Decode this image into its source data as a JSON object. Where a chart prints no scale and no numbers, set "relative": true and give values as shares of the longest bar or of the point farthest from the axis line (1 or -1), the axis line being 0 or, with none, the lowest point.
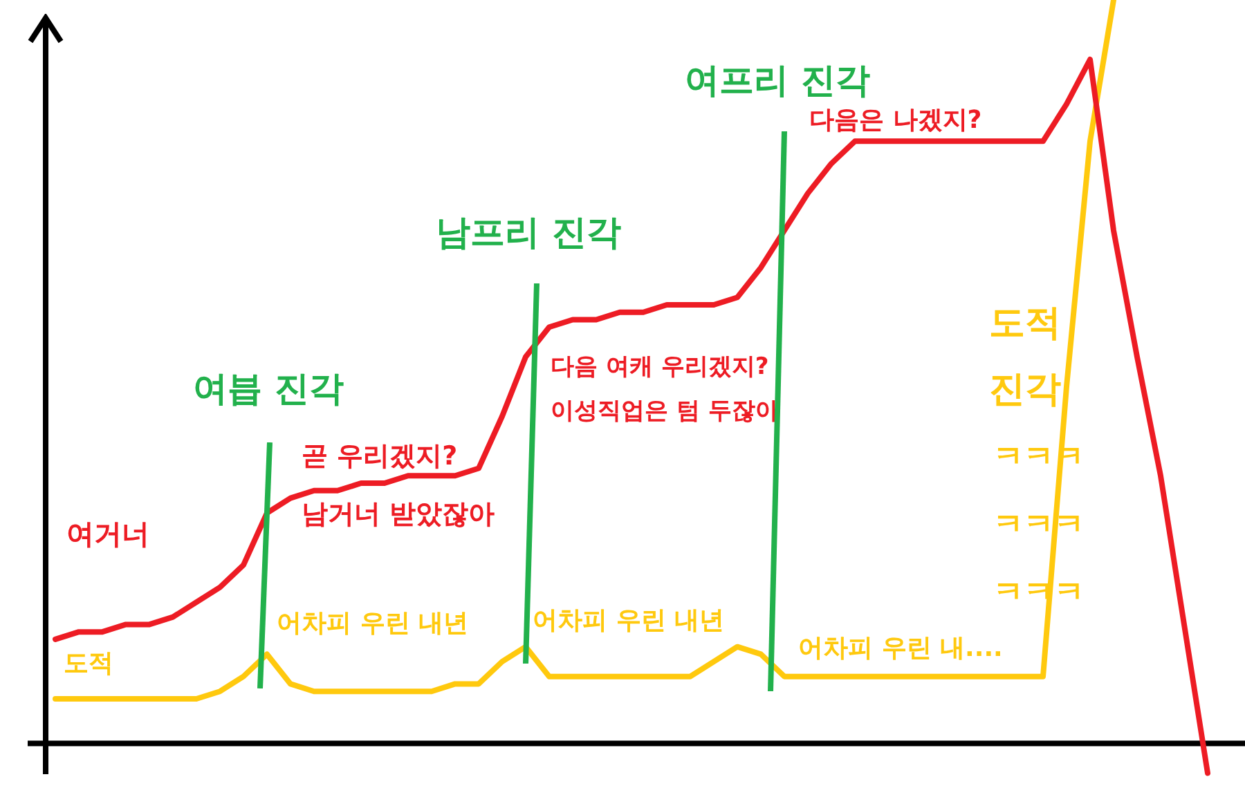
{
  "chart_data": {
    "type": "line",
    "relative": true,
    "legend": false,
    "marker": "none",
    "line_style": "solid",
    "categories": [
      null,
      null,
      null,
      null,
      null,
      null,
      null,
      null,
      null,
      null,
      null,
      null,
      null,
      null,
      null,
      null,
      null,
      null,
      null,
      null,
      null,
      null,
      null,
      null,
      null,
      null,
      null,
      null,
      null,
      null,
      null,
      null,
      null,
      null,
      null,
      null,
      null,
      null,
      null,
      null,
      null,
      null,
      null,
      null,
      null,
      null,
      null,
      null,
      null,
      null
    ],
    "series": [
      {
        "color": "#ed1c24",
        "values": [
          0.14,
          0.15,
          0.15,
          0.16,
          0.16,
          0.17,
          0.19,
          0.21,
          0.24,
          0.31,
          0.33,
          0.34,
          0.34,
          0.35,
          0.35,
          0.36,
          0.36,
          0.36,
          0.37,
          0.44,
          0.52,
          0.56,
          0.57,
          0.57,
          0.58,
          0.58,
          0.59,
          0.59,
          0.59,
          0.6,
          0.64,
          0.69,
          0.74,
          0.78,
          0.81,
          0.81,
          0.81,
          0.81,
          0.81,
          0.81,
          0.81,
          0.81,
          0.81,
          0.86,
          0.92,
          0.69,
          0.52,
          0.36,
          0.16,
          -0.04
        ]
      },
      {
        "color": "#ffc90e",
        "values": [
          0.06,
          0.06,
          0.06,
          0.06,
          0.06,
          0.06,
          0.06,
          0.07,
          0.09,
          0.12,
          0.08,
          0.07,
          0.07,
          0.07,
          0.07,
          0.07,
          0.07,
          0.08,
          0.08,
          0.11,
          0.13,
          0.09,
          0.09,
          0.09,
          0.09,
          0.09,
          0.09,
          0.09,
          0.11,
          0.13,
          0.12,
          0.09,
          0.09,
          0.09,
          0.09,
          0.09,
          0.09,
          0.09,
          0.09,
          0.09,
          0.09,
          0.09,
          0.09,
          0.48,
          0.81,
          1,
          null,
          null,
          null,
          null
        ]
      }
    ],
    "annotations": [
      "여븝 진각",
      "남프리 진각",
      "여프리 진각",
      "여거너",
      "곧 우리겠지?",
      "남거너 받았잖아",
      "다음 여캐 우리겠지?",
      "이성직업은 텀 두잖아",
      "다음은 나겠지?",
      "도적",
      "어차피 우린 내년",
      "어차피 우린 내년",
      "어차피 우린 내....",
      "도적",
      "진각",
      "ㅋㅋㅋ",
      "ㅋㅋㅋ",
      "ㅋㅋㅋ"
    ]
  }
}
